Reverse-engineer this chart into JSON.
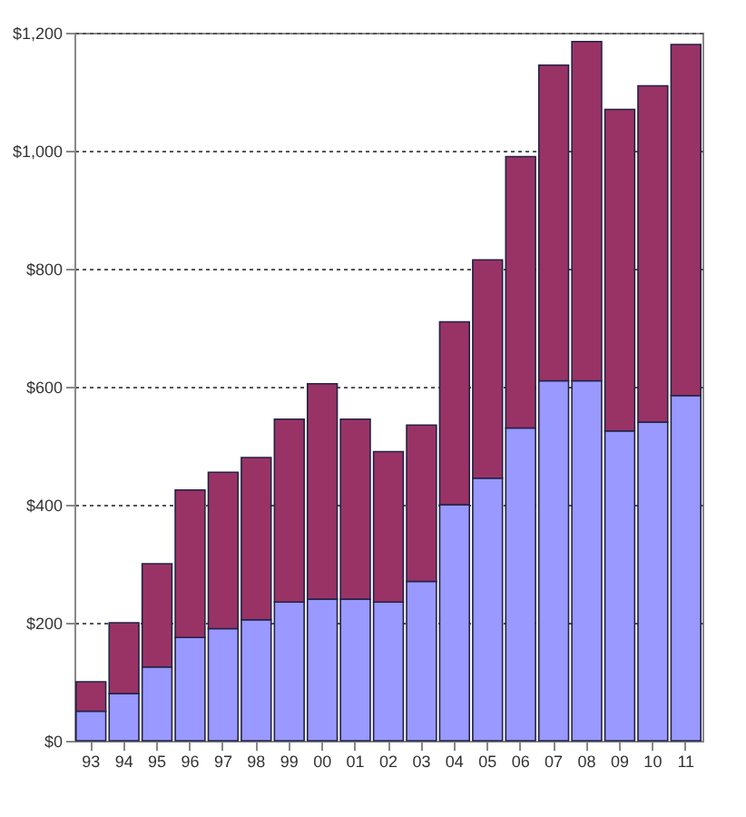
{
  "chart_data": {
    "type": "bar",
    "stacked": true,
    "categories": [
      "93",
      "94",
      "95",
      "96",
      "97",
      "98",
      "99",
      "00",
      "01",
      "02",
      "03",
      "04",
      "05",
      "06",
      "07",
      "08",
      "09",
      "10",
      "11"
    ],
    "series": [
      {
        "color": "#9999ff",
        "values": [
          50,
          80,
          125,
          175,
          190,
          205,
          235,
          240,
          240,
          235,
          270,
          400,
          445,
          530,
          610,
          610,
          525,
          540,
          585
        ]
      },
      {
        "color": "#993366",
        "values": [
          50,
          120,
          175,
          250,
          265,
          275,
          310,
          365,
          305,
          255,
          265,
          310,
          370,
          460,
          535,
          575,
          545,
          570,
          595
        ]
      }
    ],
    "ylim": [
      0,
      1200
    ],
    "yticks": [
      {
        "value": 0,
        "label": "$0"
      },
      {
        "value": 200,
        "label": "$200"
      },
      {
        "value": 400,
        "label": "$400"
      },
      {
        "value": 600,
        "label": "$600"
      },
      {
        "value": 800,
        "label": "$800"
      },
      {
        "value": 1000,
        "label": "$1,000"
      },
      {
        "value": 1200,
        "label": "$1,200"
      }
    ],
    "grid": "y"
  }
}
